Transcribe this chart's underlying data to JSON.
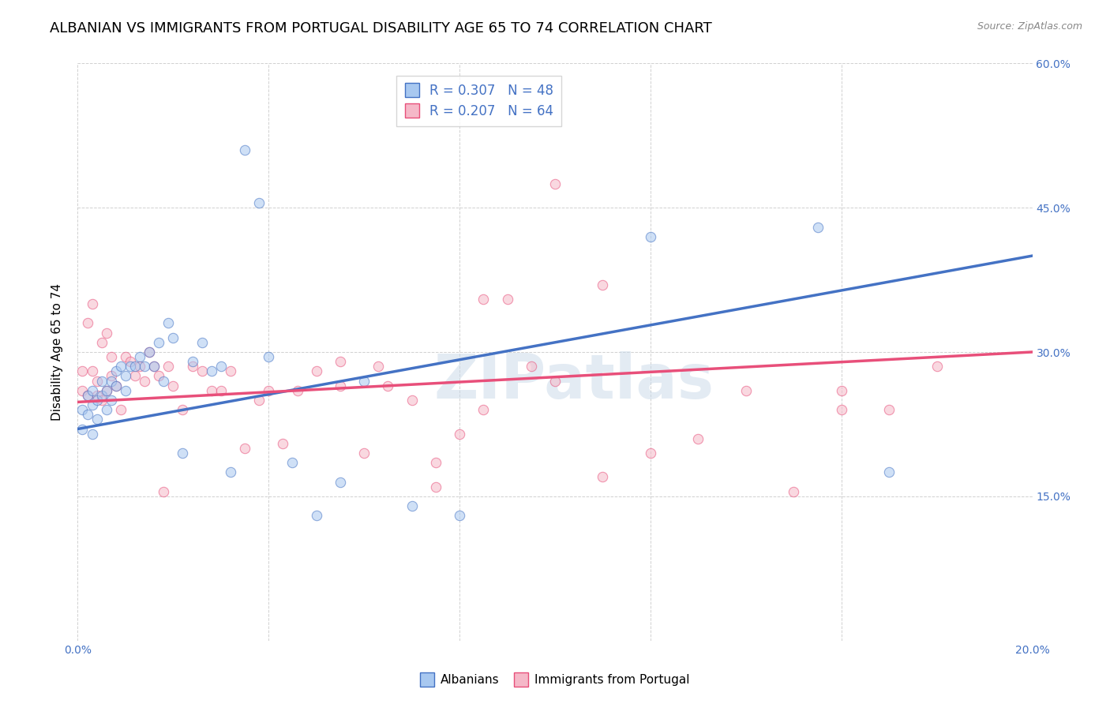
{
  "title": "ALBANIAN VS IMMIGRANTS FROM PORTUGAL DISABILITY AGE 65 TO 74 CORRELATION CHART",
  "source": "Source: ZipAtlas.com",
  "ylabel": "Disability Age 65 to 74",
  "xlim": [
    0.0,
    0.2
  ],
  "ylim": [
    0.0,
    0.6
  ],
  "watermark": "ZIPatlas",
  "blue_scatter_x": [
    0.001,
    0.001,
    0.002,
    0.002,
    0.003,
    0.003,
    0.003,
    0.004,
    0.004,
    0.005,
    0.005,
    0.006,
    0.006,
    0.007,
    0.007,
    0.008,
    0.008,
    0.009,
    0.01,
    0.01,
    0.011,
    0.012,
    0.013,
    0.014,
    0.015,
    0.016,
    0.017,
    0.018,
    0.019,
    0.02,
    0.022,
    0.024,
    0.026,
    0.028,
    0.03,
    0.032,
    0.035,
    0.038,
    0.04,
    0.045,
    0.05,
    0.055,
    0.06,
    0.07,
    0.08,
    0.12,
    0.155,
    0.17
  ],
  "blue_scatter_y": [
    0.24,
    0.22,
    0.255,
    0.235,
    0.26,
    0.245,
    0.215,
    0.25,
    0.23,
    0.27,
    0.255,
    0.26,
    0.24,
    0.27,
    0.25,
    0.28,
    0.265,
    0.285,
    0.275,
    0.26,
    0.285,
    0.285,
    0.295,
    0.285,
    0.3,
    0.285,
    0.31,
    0.27,
    0.33,
    0.315,
    0.195,
    0.29,
    0.31,
    0.28,
    0.285,
    0.175,
    0.51,
    0.455,
    0.295,
    0.185,
    0.13,
    0.165,
    0.27,
    0.14,
    0.13,
    0.42,
    0.43,
    0.175
  ],
  "pink_scatter_x": [
    0.001,
    0.001,
    0.002,
    0.002,
    0.003,
    0.003,
    0.004,
    0.004,
    0.005,
    0.005,
    0.006,
    0.006,
    0.007,
    0.007,
    0.008,
    0.009,
    0.01,
    0.011,
    0.012,
    0.013,
    0.014,
    0.015,
    0.016,
    0.017,
    0.018,
    0.019,
    0.02,
    0.022,
    0.024,
    0.026,
    0.028,
    0.03,
    0.032,
    0.035,
    0.038,
    0.04,
    0.043,
    0.046,
    0.05,
    0.055,
    0.06,
    0.065,
    0.07,
    0.075,
    0.08,
    0.085,
    0.09,
    0.095,
    0.1,
    0.11,
    0.12,
    0.13,
    0.14,
    0.15,
    0.16,
    0.17,
    0.18,
    0.1,
    0.055,
    0.063,
    0.075,
    0.085,
    0.11,
    0.16
  ],
  "pink_scatter_y": [
    0.26,
    0.28,
    0.33,
    0.255,
    0.35,
    0.28,
    0.27,
    0.255,
    0.25,
    0.31,
    0.26,
    0.32,
    0.295,
    0.275,
    0.265,
    0.24,
    0.295,
    0.29,
    0.275,
    0.285,
    0.27,
    0.3,
    0.285,
    0.275,
    0.155,
    0.285,
    0.265,
    0.24,
    0.285,
    0.28,
    0.26,
    0.26,
    0.28,
    0.2,
    0.25,
    0.26,
    0.205,
    0.26,
    0.28,
    0.265,
    0.195,
    0.265,
    0.25,
    0.185,
    0.215,
    0.355,
    0.355,
    0.285,
    0.27,
    0.37,
    0.195,
    0.21,
    0.26,
    0.155,
    0.24,
    0.24,
    0.285,
    0.475,
    0.29,
    0.285,
    0.16,
    0.24,
    0.17,
    0.26
  ],
  "blue_line_color": "#4472c4",
  "pink_line_color": "#e84f7a",
  "scatter_alpha": 0.55,
  "scatter_size": 80,
  "background_color": "#ffffff",
  "grid_color": "#cccccc",
  "title_fontsize": 13,
  "axis_label_fontsize": 11,
  "tick_fontsize": 10,
  "legend_fontsize": 12
}
